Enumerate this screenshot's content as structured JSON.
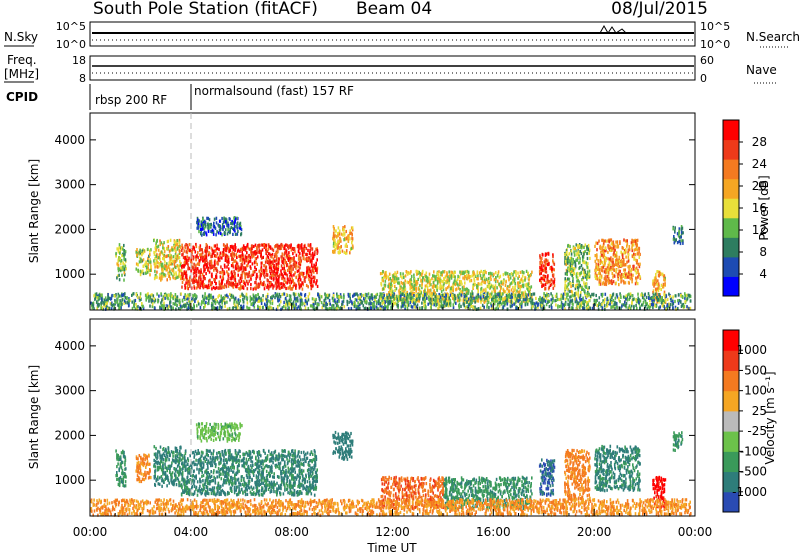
{
  "header": {
    "station": "South Pole Station (fitACF)",
    "beam": "Beam 04",
    "date": "08/Jul/2015"
  },
  "status_panels": {
    "nsky_label": "N.Sky",
    "nsearch_label": "N.Search",
    "nsky_ticks": [
      "10^5",
      "10^0"
    ],
    "nsearch_ticks": [
      "10^5",
      "10^0"
    ],
    "freq_label_1": "Freq.",
    "freq_label_2": "[MHz]",
    "freq_ticks": [
      "18",
      "8"
    ],
    "nave_label": "Nave",
    "nave_ticks": [
      "60",
      "0"
    ],
    "cpid_label": "CPID",
    "cpid_segments": [
      {
        "name": "rbsp 200 RF",
        "start_hour": 0.0,
        "end_hour": 3.8
      },
      {
        "name": "normalsound (fast) 157 RF",
        "start_hour": 3.8,
        "end_hour": 24.0
      }
    ]
  },
  "chart_data": [
    {
      "type": "heatmap",
      "panel": "power",
      "xlabel": "",
      "ylabel": "Slant Range [km]",
      "x_ticks": [
        "00:00",
        "04:00",
        "08:00",
        "12:00",
        "16:00",
        "20:00",
        "00:00"
      ],
      "xlim_hours": [
        0,
        24
      ],
      "y_ticks": [
        1000,
        2000,
        3000,
        4000
      ],
      "ylim": [
        200,
        4600
      ],
      "colorbar": {
        "label": "Power [dB]",
        "ticks": [
          "28",
          "24",
          "20",
          "16",
          "12",
          "8",
          "4"
        ],
        "range": [
          0,
          30
        ],
        "colors": [
          "#0000ff",
          "#1d4bb3",
          "#2e7d60",
          "#5fb94a",
          "#e8df3a",
          "#f5a623",
          "#f47a20",
          "#ee3a1a",
          "#ff0000"
        ]
      },
      "echo_regions": [
        {
          "t0": 1.0,
          "t1": 1.4,
          "r0": 900,
          "r1": 1700,
          "value_db": 12
        },
        {
          "t0": 1.8,
          "t1": 2.4,
          "r0": 1000,
          "r1": 1600,
          "value_db": 14
        },
        {
          "t0": 2.5,
          "t1": 3.6,
          "r0": 900,
          "r1": 1800,
          "value_db": 16
        },
        {
          "t0": 3.6,
          "t1": 9.0,
          "r0": 700,
          "r1": 1700,
          "value_db": 26
        },
        {
          "t0": 4.2,
          "t1": 6.0,
          "r0": 1900,
          "r1": 2300,
          "value_db": 6
        },
        {
          "t0": 9.6,
          "t1": 10.4,
          "r0": 1500,
          "r1": 2100,
          "value_db": 18
        },
        {
          "t0": 11.5,
          "t1": 17.5,
          "r0": 400,
          "r1": 1100,
          "value_db": 15
        },
        {
          "t0": 17.8,
          "t1": 18.4,
          "r0": 700,
          "r1": 1500,
          "value_db": 26
        },
        {
          "t0": 18.8,
          "t1": 19.8,
          "r0": 600,
          "r1": 1700,
          "value_db": 12
        },
        {
          "t0": 20.0,
          "t1": 21.8,
          "r0": 800,
          "r1": 1800,
          "value_db": 20
        },
        {
          "t0": 22.3,
          "t1": 22.8,
          "r0": 400,
          "r1": 1100,
          "value_db": 18
        },
        {
          "t0": 23.1,
          "t1": 23.5,
          "r0": 1700,
          "r1": 2100,
          "value_db": 8
        },
        {
          "t0": 0.0,
          "t1": 23.8,
          "r0": 250,
          "r1": 600,
          "value_db": 10
        }
      ]
    },
    {
      "type": "heatmap",
      "panel": "velocity",
      "xlabel": "Time UT",
      "ylabel": "Slant Range [km]",
      "x_ticks": [
        "00:00",
        "04:00",
        "08:00",
        "12:00",
        "16:00",
        "20:00",
        "00:00"
      ],
      "xlim_hours": [
        0,
        24
      ],
      "y_ticks": [
        1000,
        2000,
        3000,
        4000
      ],
      "ylim": [
        200,
        4600
      ],
      "colorbar": {
        "label": "Velocity [m s⁻¹]",
        "ticks": [
          "1000",
          "500",
          "100",
          "25",
          "-25",
          "-100",
          "-500",
          "-1000"
        ],
        "colors": [
          "#2a4bb3",
          "#2e7d7a",
          "#3a9a5a",
          "#6cc24a",
          "#bbbbbb",
          "#f5a623",
          "#f47a20",
          "#ee3a1a",
          "#ff0000"
        ]
      },
      "echo_regions": [
        {
          "t0": 1.0,
          "t1": 1.4,
          "r0": 900,
          "r1": 1700,
          "value_ms": -150
        },
        {
          "t0": 1.8,
          "t1": 2.4,
          "r0": 1000,
          "r1": 1600,
          "value_ms": 80
        },
        {
          "t0": 2.5,
          "t1": 3.6,
          "r0": 900,
          "r1": 1800,
          "value_ms": -200
        },
        {
          "t0": 3.6,
          "t1": 9.0,
          "r0": 700,
          "r1": 1700,
          "value_ms": -200
        },
        {
          "t0": 4.2,
          "t1": 6.0,
          "r0": 1900,
          "r1": 2300,
          "value_ms": -50
        },
        {
          "t0": 9.6,
          "t1": 10.4,
          "r0": 1500,
          "r1": 2100,
          "value_ms": -300
        },
        {
          "t0": 11.5,
          "t1": 14.0,
          "r0": 400,
          "r1": 1100,
          "value_ms": 150
        },
        {
          "t0": 14.0,
          "t1": 17.5,
          "r0": 400,
          "r1": 1100,
          "value_ms": -150
        },
        {
          "t0": 17.8,
          "t1": 18.4,
          "r0": 700,
          "r1": 1500,
          "value_ms": -400
        },
        {
          "t0": 18.8,
          "t1": 19.8,
          "r0": 600,
          "r1": 1700,
          "value_ms": 80
        },
        {
          "t0": 20.0,
          "t1": 21.8,
          "r0": 800,
          "r1": 1800,
          "value_ms": -200
        },
        {
          "t0": 22.3,
          "t1": 22.8,
          "r0": 400,
          "r1": 1100,
          "value_ms": 600
        },
        {
          "t0": 23.1,
          "t1": 23.5,
          "r0": 1700,
          "r1": 2100,
          "value_ms": -150
        },
        {
          "t0": 0.0,
          "t1": 23.8,
          "r0": 250,
          "r1": 600,
          "value_ms": 60
        }
      ]
    }
  ]
}
